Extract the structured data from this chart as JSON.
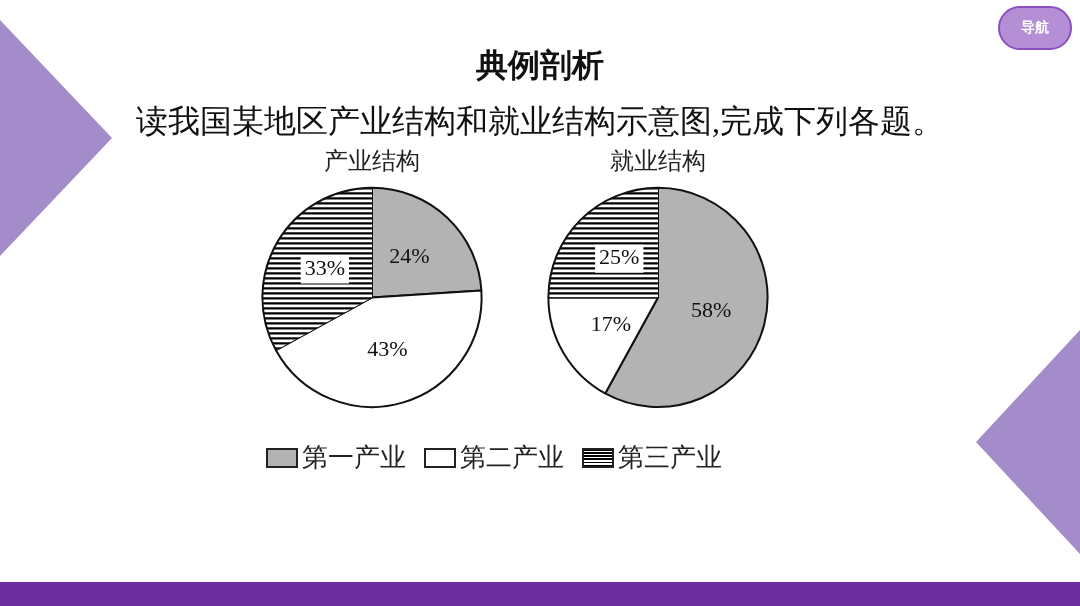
{
  "chart_data": [
    {
      "type": "other",
      "title": "典例剖析",
      "subtitle": "读我国某地区产业结构和就业结构示意图,完成下列各题。",
      "annotations": [
        "导航"
      ]
    },
    {
      "type": "pie",
      "title": "产业结构",
      "categories": [
        "第一产业",
        "第二产业",
        "第三产业"
      ],
      "values": [
        24,
        43,
        33
      ],
      "colors": [
        "#b3b3b3",
        "#ffffff",
        "#000000"
      ],
      "value_labels": [
        "24%",
        "43%",
        "33%"
      ],
      "legend": "bottom"
    },
    {
      "type": "pie",
      "title": "就业结构",
      "categories": [
        null,
        null,
        null
      ],
      "values": [
        58,
        17,
        25
      ],
      "colors": [
        "#b3b3b3",
        "#ffffff",
        "#000000"
      ],
      "value_labels": [
        "58%",
        "17%",
        "25%"
      ]
    }
  ]
}
